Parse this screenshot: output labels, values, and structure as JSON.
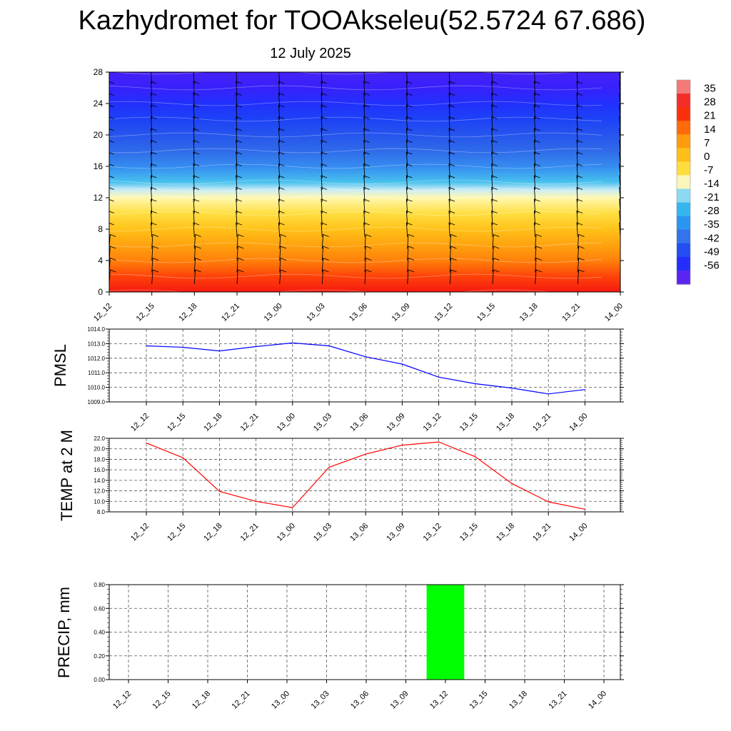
{
  "title": "Kazhydromet for TOOAkseleu(52.5724 67.686)",
  "subtitle": "12 July 2025",
  "chart_data": [
    {
      "type": "heatmap",
      "description_free": true,
      "x_tick_labels": [
        "12_12",
        "12_15",
        "12_18",
        "12_21",
        "13_00",
        "13_03",
        "13_06",
        "13_09",
        "13_12",
        "13_15",
        "13_18",
        "13_21",
        "14_00"
      ],
      "y_ticks": [
        0,
        4,
        8,
        12,
        16,
        20,
        24,
        28
      ],
      "ylim": [
        0,
        28
      ],
      "colorbar_labels": [
        "35",
        "28",
        "21",
        "14",
        "7",
        "0",
        "-7",
        "-14",
        "-21",
        "-28",
        "-35",
        "-42",
        "-49",
        "-56"
      ],
      "colorbar_range": [
        -63,
        42
      ],
      "colormap": [
        {
          "v": -63,
          "c": "#8a2be2"
        },
        {
          "v": -56,
          "c": "#2a1fff"
        },
        {
          "v": -49,
          "c": "#1b3dfa"
        },
        {
          "v": -42,
          "c": "#2b5fe8"
        },
        {
          "v": -35,
          "c": "#3a86f0"
        },
        {
          "v": -28,
          "c": "#1aa6f0"
        },
        {
          "v": -21,
          "c": "#4fc6ee"
        },
        {
          "v": -14,
          "c": "#c9ecf5"
        },
        {
          "v": -10,
          "c": "#fff8b0"
        },
        {
          "v": -7,
          "c": "#ffe85a"
        },
        {
          "v": 0,
          "c": "#ffd11f"
        },
        {
          "v": 7,
          "c": "#ffad10"
        },
        {
          "v": 14,
          "c": "#ff8a0c"
        },
        {
          "v": 21,
          "c": "#ff4a08"
        },
        {
          "v": 28,
          "c": "#f51a10"
        },
        {
          "v": 35,
          "c": "#f04040"
        },
        {
          "v": 42,
          "c": "#f7b3b3"
        }
      ],
      "temperature_profile": [
        {
          "level": 0,
          "value": 28
        },
        {
          "level": 2,
          "value": 22
        },
        {
          "level": 4,
          "value": 15
        },
        {
          "level": 6,
          "value": 9
        },
        {
          "level": 8,
          "value": 3
        },
        {
          "level": 10,
          "value": -4
        },
        {
          "level": 12,
          "value": -10
        },
        {
          "level": 13,
          "value": -14
        },
        {
          "level": 14,
          "value": -22
        },
        {
          "level": 16,
          "value": -34
        },
        {
          "level": 18,
          "value": -40
        },
        {
          "level": 20,
          "value": -44
        },
        {
          "level": 22,
          "value": -48
        },
        {
          "level": 24,
          "value": -52
        },
        {
          "level": 26,
          "value": -57
        },
        {
          "level": 28,
          "value": -58
        }
      ]
    },
    {
      "type": "line",
      "ylabel": "PMSL",
      "categories": [
        "12_12",
        "12_15",
        "12_18",
        "12_21",
        "13_00",
        "13_03",
        "13_06",
        "13_09",
        "13_12",
        "13_15",
        "13_18",
        "13_21",
        "14_00"
      ],
      "series": [
        {
          "values": [
            1012.85,
            1012.75,
            1012.5,
            1012.8,
            1013.05,
            1012.85,
            1012.1,
            1011.6,
            1010.7,
            1010.25,
            1009.95,
            1009.55,
            1009.85
          ]
        }
      ],
      "ylim": [
        1009.0,
        1014.0
      ],
      "y_tick_labels": [
        "1014.0",
        "1013.0",
        "1012.0",
        "1011.0",
        "1010.0",
        "1009.0"
      ],
      "color": "#0000ff"
    },
    {
      "type": "line",
      "ylabel": "TEMP at 2 M",
      "categories": [
        "12_12",
        "12_15",
        "12_18",
        "12_21",
        "13_00",
        "13_03",
        "13_06",
        "13_09",
        "13_12",
        "13_15",
        "13_18",
        "13_21",
        "14_00"
      ],
      "series": [
        {
          "values": [
            21.1,
            18.3,
            11.9,
            10.0,
            8.8,
            16.5,
            19.0,
            20.7,
            21.3,
            18.5,
            13.4,
            9.9,
            8.5
          ]
        }
      ],
      "ylim": [
        8.0,
        22.0
      ],
      "y_tick_labels": [
        "22.0",
        "20.0",
        "18.0",
        "16.0",
        "14.0",
        "12.0",
        "10.0",
        "8.0"
      ],
      "color": "#ff0000"
    },
    {
      "type": "bar",
      "ylabel": "PRECIP, mm",
      "categories": [
        "12_12",
        "12_15",
        "12_18",
        "12_21",
        "13_00",
        "13_03",
        "13_06",
        "13_09",
        "13_12",
        "13_15",
        "13_18",
        "13_21",
        "14_00"
      ],
      "values": [
        0,
        0,
        0,
        0,
        0,
        0,
        0,
        0,
        0.8,
        0,
        0,
        0,
        0
      ],
      "ylim": [
        0,
        0.8
      ],
      "y_tick_labels": [
        "0.80",
        "0.60",
        "0.40",
        "0.20",
        "0.00"
      ],
      "color": "#00ff00"
    }
  ]
}
